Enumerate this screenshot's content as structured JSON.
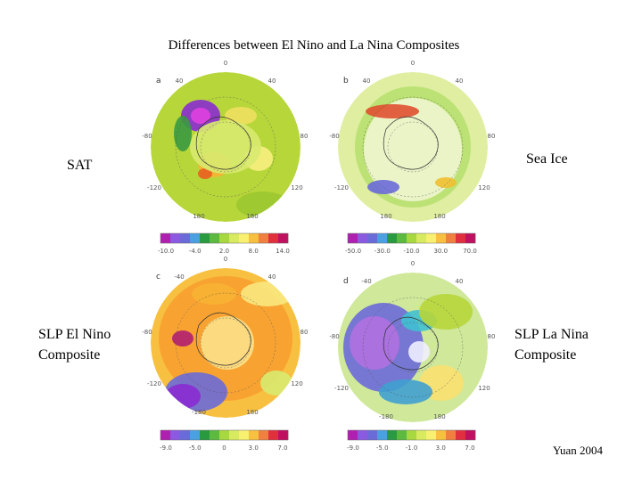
{
  "header": {
    "title": "Differences between El Nino and La Nina Composites"
  },
  "side_labels": {
    "sat": "SAT",
    "sea_ice": "Sea Ice",
    "slp_el_nino": [
      "SLP El Nino",
      "Composite"
    ],
    "slp_la_nina": [
      "SLP La Nina",
      "Composite"
    ]
  },
  "panels": [
    {
      "letter": "a",
      "lon_labels": [
        "0",
        "40",
        "40",
        "-80",
        "80",
        "-120",
        "120",
        "180",
        "180"
      ],
      "colorbar_labels": [
        "-10.0",
        "-4.0",
        "2.0",
        "8.0",
        "14.0"
      ]
    },
    {
      "letter": "b",
      "lon_labels": [
        "0",
        "40",
        "40",
        "-80",
        "80",
        "-120",
        "120",
        "180",
        "180"
      ],
      "colorbar_labels": [
        "-50.0",
        "-30.0",
        "-10.0",
        "30.0",
        "70.0"
      ]
    },
    {
      "letter": "c",
      "lon_labels": [
        "0",
        "-40",
        "40",
        "-80",
        "80",
        "-120",
        "120",
        "-180",
        "180"
      ],
      "colorbar_labels": [
        "-9.0",
        "-5.0",
        "0",
        "3.0",
        "7.0"
      ]
    },
    {
      "letter": "d",
      "lon_labels": [
        "0",
        "-40",
        "40",
        "-80",
        "80",
        "-120",
        "120",
        "-180",
        "180"
      ],
      "colorbar_labels": [
        "-9.0",
        "-5.0",
        "-1.0",
        "3.0",
        "7.0"
      ]
    }
  ],
  "credit": "Yuan 2004"
}
